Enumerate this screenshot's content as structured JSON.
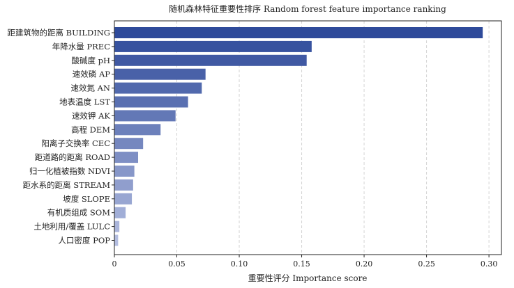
{
  "chart_data": {
    "type": "bar",
    "orientation": "horizontal",
    "title": "随机森林特征重要性排序 Random forest feature importance ranking",
    "xlabel": "重要性评分 Importance score",
    "ylabel": "",
    "xlim": [
      0,
      0.31
    ],
    "xticks": [
      0,
      0.05,
      0.1,
      0.15,
      0.2,
      0.25,
      0.3
    ],
    "xtick_labels": [
      "0",
      "0.05",
      "0.10",
      "0.15",
      "0.20",
      "0.25",
      "0.30"
    ],
    "grid": "vertical dashed",
    "color_start": "#2e4a9a",
    "color_end": "#b3bde0",
    "categories": [
      "距建筑物的距离 BUILDING",
      "年降水量 PREC",
      "酸碱度 pH",
      "速效磷 AP",
      "速效氮 AN",
      "地表温度 LST",
      "速效钾 AK",
      "高程 DEM",
      "阳离子交换率 CEC",
      "距道路的距离 ROAD",
      "归一化植被指数 NDVI",
      "距水系的距离 STREAM",
      "坡度 SLOPE",
      "有机质组成 SOM",
      "土地利用/覆盖 LULC",
      "人口密度 POP"
    ],
    "values": [
      0.295,
      0.158,
      0.154,
      0.073,
      0.07,
      0.059,
      0.049,
      0.037,
      0.023,
      0.019,
      0.016,
      0.015,
      0.014,
      0.009,
      0.004,
      0.003
    ]
  }
}
